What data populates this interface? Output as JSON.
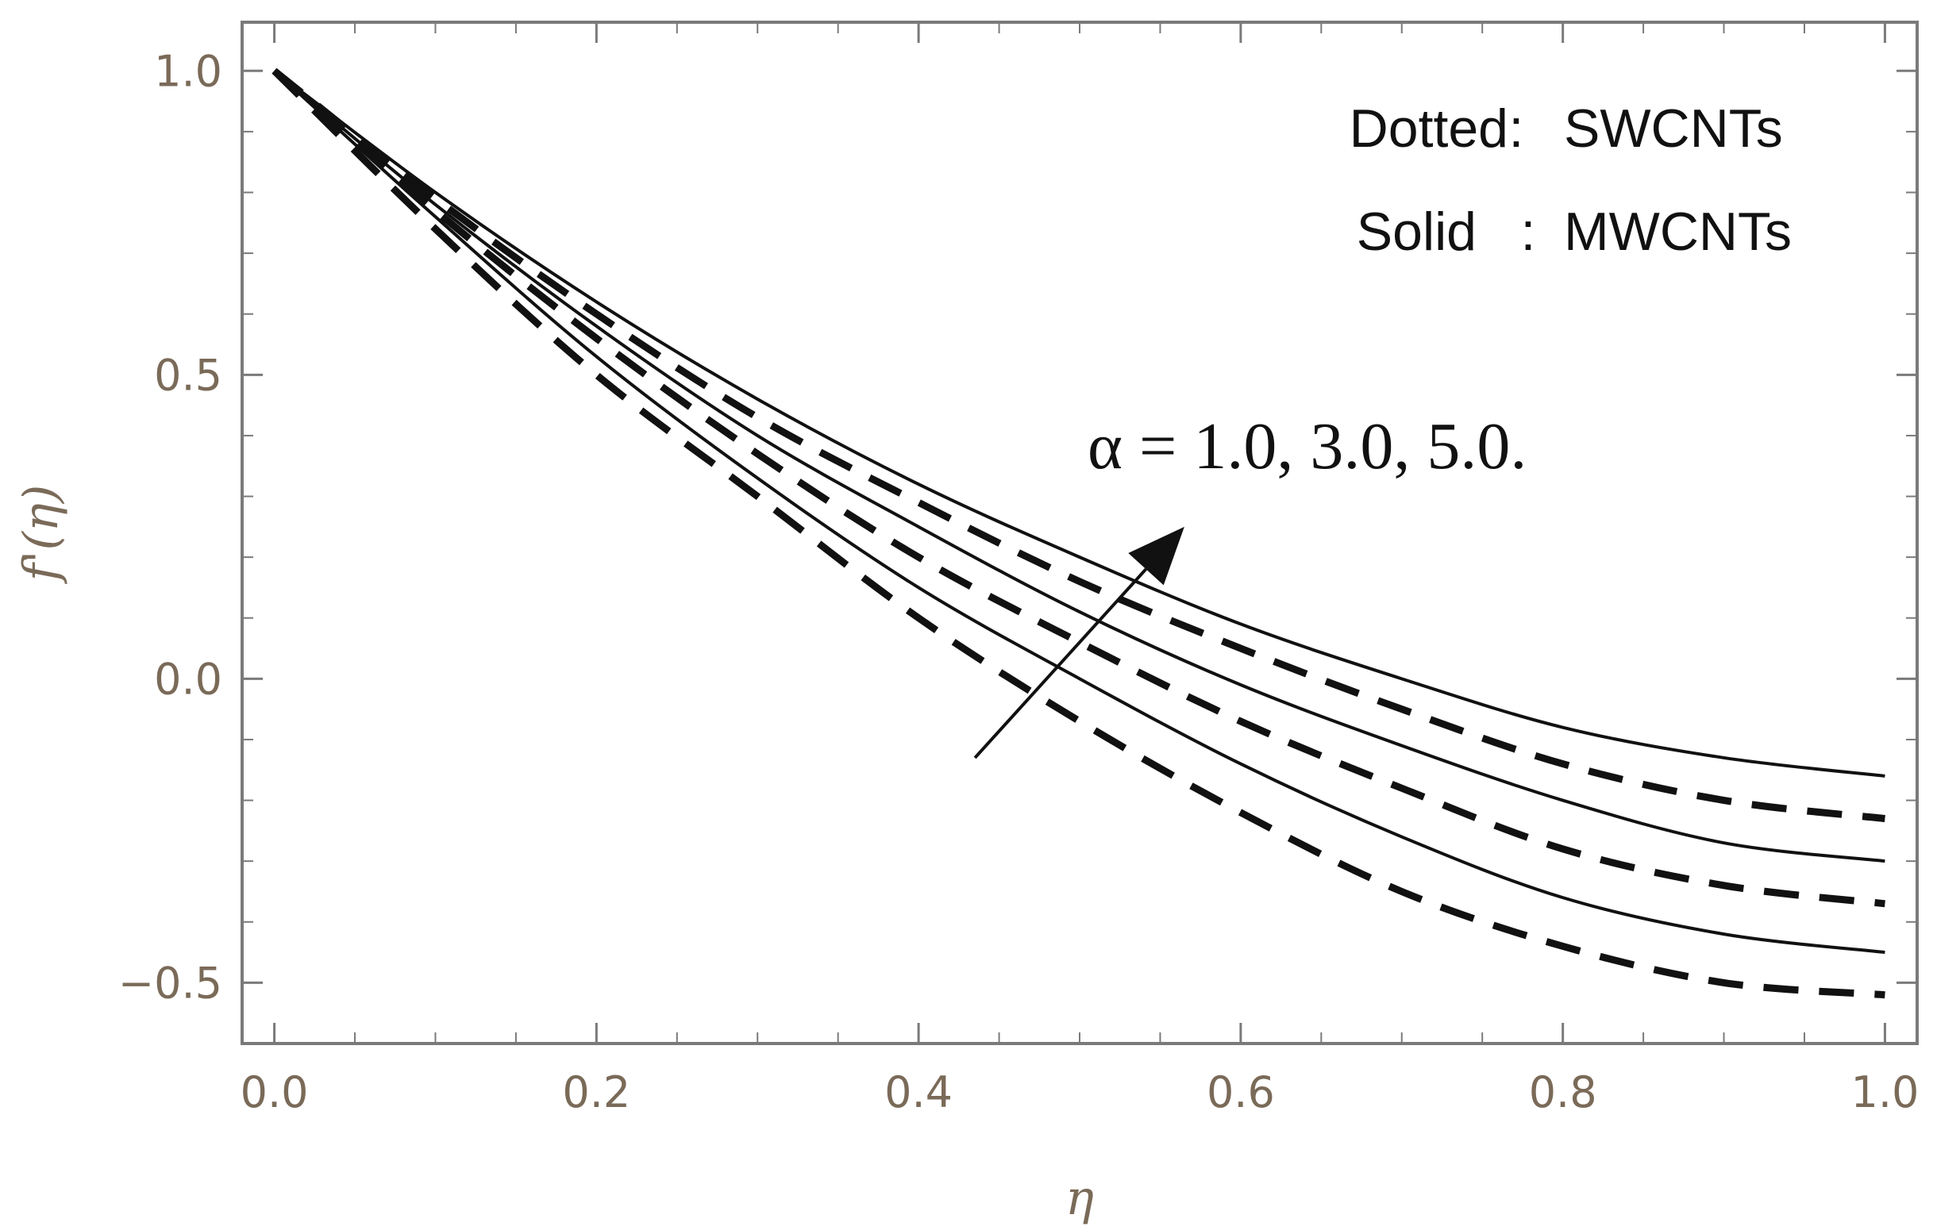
{
  "chart_data": {
    "type": "line",
    "title": "",
    "xlabel": "η",
    "ylabel": "f'(η)",
    "xlim": [
      -0.02,
      1.02
    ],
    "ylim": [
      -0.6,
      1.08
    ],
    "xticks": [
      0.0,
      0.2,
      0.4,
      0.6,
      0.8,
      1.0
    ],
    "xtick_labels": [
      "0.0",
      "0.2",
      "0.4",
      "0.6",
      "0.8",
      "1.0"
    ],
    "yticks": [
      -0.5,
      0.0,
      0.5,
      1.0
    ],
    "ytick_labels": [
      "−0.5",
      "0.0",
      "0.5",
      "1.0"
    ],
    "x": [
      0.0,
      0.1,
      0.2,
      0.3,
      0.4,
      0.5,
      0.6,
      0.7,
      0.8,
      0.9,
      1.0
    ],
    "series": [
      {
        "style": "dashed",
        "values": [
          1.0,
          0.74,
          0.5,
          0.3,
          0.1,
          -0.07,
          -0.22,
          -0.35,
          -0.44,
          -0.5,
          -0.52
        ]
      },
      {
        "style": "solid",
        "values": [
          1.0,
          0.76,
          0.53,
          0.33,
          0.15,
          0.0,
          -0.14,
          -0.26,
          -0.36,
          -0.42,
          -0.45
        ]
      },
      {
        "style": "dashed",
        "values": [
          1.0,
          0.77,
          0.56,
          0.37,
          0.2,
          0.06,
          -0.07,
          -0.18,
          -0.28,
          -0.34,
          -0.37
        ]
      },
      {
        "style": "solid",
        "values": [
          1.0,
          0.78,
          0.58,
          0.4,
          0.25,
          0.11,
          -0.01,
          -0.11,
          -0.2,
          -0.27,
          -0.3
        ]
      },
      {
        "style": "dashed",
        "values": [
          1.0,
          0.79,
          0.6,
          0.43,
          0.29,
          0.16,
          0.05,
          -0.05,
          -0.14,
          -0.2,
          -0.23
        ]
      },
      {
        "style": "solid",
        "values": [
          1.0,
          0.8,
          0.62,
          0.46,
          0.32,
          0.2,
          0.09,
          0.0,
          -0.08,
          -0.13,
          -0.16
        ]
      }
    ],
    "legend": {
      "placement": "top-right",
      "entries": [
        {
          "key": "Dotted",
          "sep": ":",
          "label": "SWCNTs"
        },
        {
          "key": "Solid",
          "sep": ":",
          "label": "MWCNTs"
        }
      ]
    },
    "annotation": {
      "text": "α = 1.0, 3.0, 5.0.",
      "arrow_from": [
        0.435,
        -0.13
      ],
      "arrow_to": [
        0.565,
        0.25
      ]
    },
    "grid": false,
    "colors": {
      "line": "#111111",
      "frame": "#7a7a7a",
      "tick_text": "#7a6a58"
    }
  }
}
